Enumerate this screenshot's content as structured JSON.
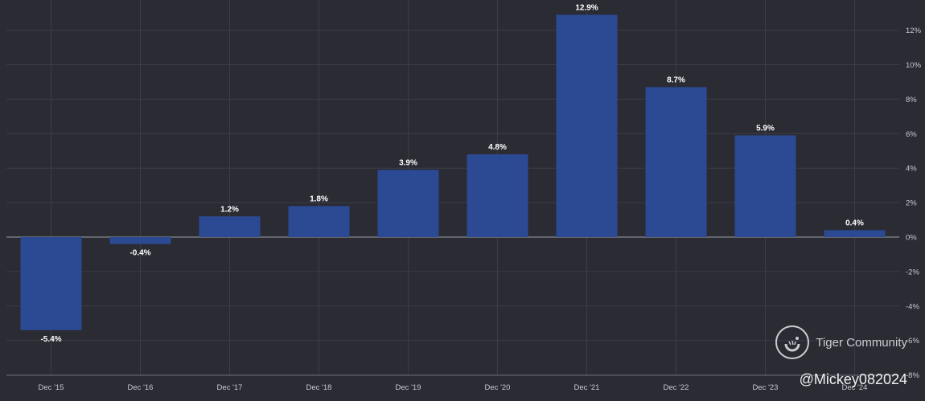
{
  "chart_data": {
    "type": "bar",
    "categories": [
      "Dec '15",
      "Dec '16",
      "Dec '17",
      "Dec '18",
      "Dec '19",
      "Dec '20",
      "Dec '21",
      "Dec '22",
      "Dec '23",
      "Dec '24"
    ],
    "values": [
      -5.4,
      -0.4,
      1.2,
      1.8,
      3.9,
      4.8,
      12.9,
      8.7,
      5.9,
      0.4
    ],
    "data_labels": [
      "-5.4%",
      "-0.4%",
      "1.2%",
      "1.8%",
      "3.9%",
      "4.8%",
      "12.9%",
      "8.7%",
      "5.9%",
      "0.4%"
    ],
    "y_ticks": [
      12,
      10,
      8,
      6,
      4,
      2,
      0,
      -2,
      -4,
      -6,
      -8
    ],
    "y_tick_labels": [
      "12%",
      "10%",
      "8%",
      "6%",
      "4%",
      "2%",
      "0%",
      "-2%",
      "-4%",
      "-6%",
      "-8%"
    ],
    "ylim": [
      -8,
      13.5
    ],
    "y_axis_side": "right",
    "grid": true,
    "title": "",
    "xlabel": "",
    "ylabel": ""
  },
  "colors": {
    "background": "#2a2b33",
    "bar": "#2c4a93"
  },
  "watermark": {
    "brand": "Tiger Community",
    "handle": "@Mickey082024",
    "icon": "tiger-logo-icon"
  }
}
